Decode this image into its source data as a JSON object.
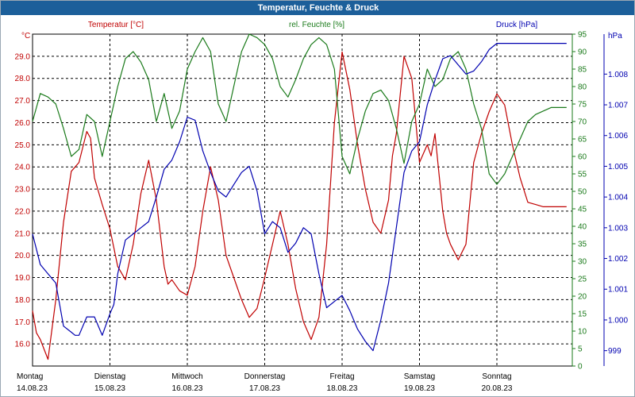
{
  "window": {
    "title": "Temperatur, Feuchte & Druck"
  },
  "colors": {
    "temperature": "#c00000",
    "humidity": "#1a7a1a",
    "pressure": "#0000b0",
    "grid": "#000000",
    "title_bg": "#1c5f9a"
  },
  "chart_data": {
    "type": "line",
    "title": "Temperatur, Feuchte & Druck",
    "grid": true,
    "x_days": [
      {
        "weekday": "Montag",
        "date": "14.08.23"
      },
      {
        "weekday": "Dienstag",
        "date": "15.08.23"
      },
      {
        "weekday": "Mittwoch",
        "date": "16.08.23"
      },
      {
        "weekday": "Donnerstag",
        "date": "17.08.23"
      },
      {
        "weekday": "Freitag",
        "date": "18.08.23"
      },
      {
        "weekday": "Samstag",
        "date": "19.08.23"
      },
      {
        "weekday": "Sonntag",
        "date": "20.08.23"
      }
    ],
    "axes": {
      "temperature": {
        "label": "Temperatur [°C]",
        "unit": "°C",
        "ylim": [
          15.0,
          30.0
        ],
        "ticks": [
          "16.0",
          "17.0",
          "18.0",
          "19.0",
          "20.0",
          "21.0",
          "22.0",
          "23.0",
          "24.0",
          "25.0",
          "26.0",
          "27.0",
          "28.0",
          "29.0"
        ]
      },
      "humidity": {
        "label": "rel. Feuchte [%]",
        "unit": "%",
        "ylim": [
          0,
          95
        ],
        "ticks": [
          "0",
          "5",
          "10",
          "15",
          "20",
          "25",
          "30",
          "35",
          "40",
          "45",
          "50",
          "55",
          "60",
          "65",
          "70",
          "75",
          "80",
          "85",
          "90",
          "95"
        ]
      },
      "pressure": {
        "label": "Druck [hPa]",
        "unit": "hPa",
        "ylim": [
          998.5,
          1009.3
        ],
        "ticks": [
          "999",
          "1.000",
          "1.001",
          "1.002",
          "1.003",
          "1.004",
          "1.005",
          "1.006",
          "1.007",
          "1.008"
        ]
      }
    },
    "series": [
      {
        "name": "Temperatur [°C]",
        "axis": "temperature",
        "color": "#c00000",
        "x": [
          0,
          0.05,
          0.1,
          0.2,
          0.3,
          0.4,
          0.5,
          0.6,
          0.7,
          0.75,
          0.8,
          0.9,
          1.0,
          1.1,
          1.2,
          1.3,
          1.4,
          1.5,
          1.6,
          1.7,
          1.75,
          1.8,
          1.9,
          2.0,
          2.1,
          2.2,
          2.3,
          2.4,
          2.5,
          2.6,
          2.7,
          2.8,
          2.9,
          3.0,
          3.1,
          3.2,
          3.3,
          3.4,
          3.5,
          3.6,
          3.7,
          3.8,
          3.9,
          4.0,
          4.1,
          4.2,
          4.3,
          4.4,
          4.5,
          4.6,
          4.65,
          4.7,
          4.8,
          4.9,
          5.0,
          5.1,
          5.15,
          5.2,
          5.3,
          5.35,
          5.4,
          5.5,
          5.6,
          5.7,
          5.8,
          5.9,
          6.0,
          6.1,
          6.2,
          6.3,
          6.4,
          6.5,
          6.6,
          6.7,
          6.8,
          6.9
        ],
        "y": [
          17.5,
          16.5,
          16.2,
          15.3,
          18.0,
          21.5,
          23.8,
          24.2,
          25.6,
          25.3,
          23.5,
          22.3,
          21.2,
          19.5,
          18.9,
          20.5,
          22.8,
          24.3,
          22.5,
          19.5,
          18.7,
          18.9,
          18.4,
          18.2,
          19.5,
          22.0,
          24.0,
          22.5,
          20.0,
          19.0,
          18.0,
          17.2,
          17.6,
          19.0,
          20.5,
          22.0,
          20.5,
          18.5,
          17.0,
          16.2,
          17.2,
          20.5,
          26.0,
          29.2,
          27.5,
          25.0,
          23.0,
          21.5,
          21.0,
          22.5,
          24.5,
          25.5,
          29.0,
          28.0,
          24.2,
          25.0,
          24.5,
          25.5,
          22.0,
          21.0,
          20.5,
          19.8,
          20.5,
          24.2,
          25.5,
          26.5,
          27.3,
          26.8,
          25.0,
          23.5,
          22.4,
          22.3,
          22.2,
          22.2,
          22.2,
          22.2
        ]
      },
      {
        "name": "rel. Feuchte [%]",
        "axis": "humidity",
        "color": "#1a7a1a",
        "x": [
          0,
          0.1,
          0.2,
          0.3,
          0.4,
          0.5,
          0.6,
          0.7,
          0.8,
          0.9,
          1.0,
          1.1,
          1.2,
          1.3,
          1.4,
          1.5,
          1.6,
          1.7,
          1.8,
          1.9,
          2.0,
          2.1,
          2.2,
          2.3,
          2.4,
          2.5,
          2.6,
          2.7,
          2.8,
          2.9,
          3.0,
          3.1,
          3.2,
          3.3,
          3.4,
          3.5,
          3.6,
          3.7,
          3.8,
          3.9,
          4.0,
          4.1,
          4.2,
          4.3,
          4.4,
          4.5,
          4.6,
          4.7,
          4.8,
          4.9,
          5.0,
          5.1,
          5.2,
          5.3,
          5.4,
          5.5,
          5.6,
          5.7,
          5.8,
          5.9,
          6.0,
          6.1,
          6.2,
          6.3,
          6.4,
          6.5,
          6.6,
          6.7,
          6.8,
          6.9
        ],
        "y": [
          70,
          78,
          77,
          75,
          68,
          60,
          62,
          72,
          70,
          60,
          70,
          80,
          88,
          90,
          87,
          82,
          70,
          78,
          68,
          73,
          85,
          90,
          94,
          90,
          75,
          70,
          80,
          90,
          95,
          94,
          92,
          88,
          80,
          77,
          82,
          88,
          92,
          94,
          92,
          85,
          60,
          55,
          65,
          73,
          78,
          79,
          76,
          68,
          58,
          70,
          75,
          85,
          80,
          82,
          88,
          90,
          85,
          75,
          68,
          55,
          52,
          55,
          60,
          65,
          70,
          72,
          73,
          74,
          74,
          74
        ]
      },
      {
        "name": "Druck [hPa]",
        "axis": "pressure",
        "color": "#0000b0",
        "x": [
          0,
          0.1,
          0.2,
          0.3,
          0.4,
          0.5,
          0.55,
          0.6,
          0.7,
          0.8,
          0.9,
          1.0,
          1.05,
          1.1,
          1.2,
          1.3,
          1.4,
          1.5,
          1.6,
          1.7,
          1.8,
          1.9,
          2.0,
          2.1,
          2.2,
          2.3,
          2.4,
          2.5,
          2.6,
          2.7,
          2.8,
          2.9,
          3.0,
          3.1,
          3.2,
          3.3,
          3.4,
          3.5,
          3.6,
          3.7,
          3.8,
          3.9,
          4.0,
          4.1,
          4.2,
          4.3,
          4.4,
          4.5,
          4.6,
          4.7,
          4.8,
          4.9,
          5.0,
          5.1,
          5.2,
          5.3,
          5.4,
          5.5,
          5.6,
          5.7,
          5.8,
          5.9,
          6.0,
          6.1,
          6.2,
          6.3,
          6.4,
          6.5,
          6.6,
          6.7,
          6.8,
          6.9
        ],
        "y": [
          1002.8,
          1001.8,
          1001.5,
          1001.2,
          999.8,
          999.6,
          999.5,
          999.5,
          1000.1,
          1000.1,
          999.5,
          1000.2,
          1000.5,
          1001.5,
          1002.6,
          1002.8,
          1003.0,
          1003.2,
          1004.0,
          1004.9,
          1005.2,
          1005.8,
          1006.6,
          1006.5,
          1005.5,
          1004.8,
          1004.2,
          1004.0,
          1004.4,
          1004.8,
          1005.0,
          1004.2,
          1002.8,
          1003.2,
          1003.0,
          1002.2,
          1002.5,
          1003.0,
          1002.8,
          1001.5,
          1000.4,
          1000.6,
          1000.8,
          1000.3,
          999.7,
          999.3,
          999.0,
          1000.0,
          1001.2,
          1003.0,
          1004.8,
          1005.5,
          1005.8,
          1007.0,
          1007.8,
          1008.5,
          1008.6,
          1008.3,
          1008.0,
          1008.1,
          1008.4,
          1008.8,
          1009.0,
          1009.0,
          1009.0,
          1009.0,
          1009.0,
          1009.0,
          1009.0,
          1009.0,
          1009.0,
          1009.0
        ]
      }
    ]
  }
}
